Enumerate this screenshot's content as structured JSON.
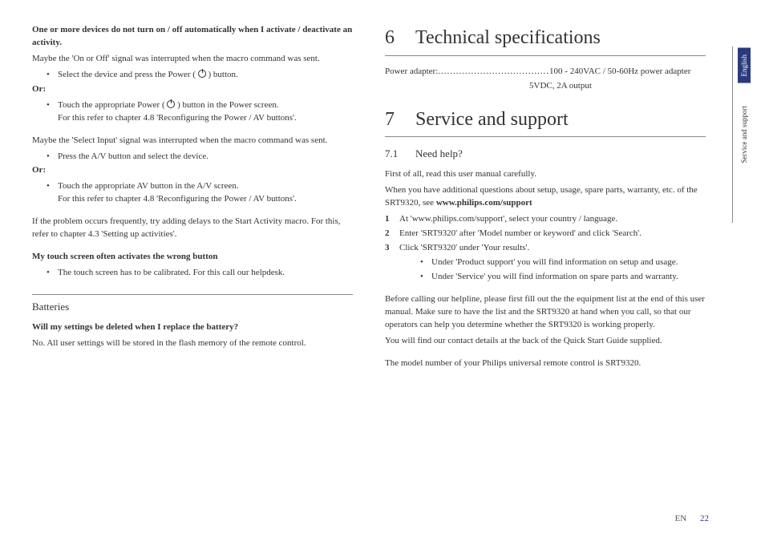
{
  "left": {
    "p1_bold": "One or more devices do not turn on / off automatically when I activate / deactivate an activity.",
    "p2": "Maybe the 'On or Off' signal was interrupted when the macro command was sent.",
    "b1a": "Select the device and press the Power (",
    "b1b": ") button.",
    "or": "Or:",
    "b2a": "Touch the appropriate Power (",
    "b2b": ") button in the Power screen.",
    "b2c": "For this refer to chapter 4.8 'Reconfiguring the Power / AV buttons'.",
    "p3": "Maybe the 'Select Input' signal was interrupted when the macro command was sent.",
    "b3": "Press the A/V button and select the device.",
    "b4": "Touch the appropriate AV button in the A/V screen.",
    "b4b": "For this refer to chapter 4.8 'Reconfiguring the Power / AV buttons'.",
    "p4": "If the problem occurs frequently, try adding delays to the Start Activity macro. For this, refer to chapter 4.3 'Setting up activities'.",
    "h_touch": "My touch screen often activates the wrong button",
    "b5": "The touch screen has to be calibrated. For this call our helpdesk.",
    "h_batt": "Batteries",
    "q_batt": "Will my settings be deleted when I replace the battery?",
    "a_batt": "No. All user settings will be stored in the flash memory of the remote control."
  },
  "right": {
    "h6_num": "6",
    "h6": "Technical specifications",
    "spec_label": "Power adapter:",
    "spec_dots": ".....................................",
    "spec_val": "100 - 240VAC / 50-60Hz power adapter",
    "spec_sub": "5VDC, 2A output",
    "h7_num": "7",
    "h7": "Service and support",
    "h71_num": "7.1",
    "h71": "Need help?",
    "p1": "First of all, read this user manual carefully.",
    "p2a": "When you have additional questions about setup, usage, spare parts, warranty, etc. of the SRT9320, see ",
    "p2b": "www.philips.com/support",
    "s1": "At 'www.philips.com/support', select your country / language.",
    "s2": "Enter 'SRT9320' after 'Model number or keyword' and click 'Search'.",
    "s3": "Click 'SRT9320' under 'Your results'.",
    "sb1": "Under 'Product support' you will find information on setup and usage.",
    "sb2": "Under 'Service' you will find information on spare parts and warranty.",
    "p3": "Before calling our helpline, please first fill out the the equipment list at the end of this user manual. Make sure to have the list and the SRT9320 at hand when you call, so that our operators can help you determine whether the SRT9320 is working properly.",
    "p4": "You will find our contact details at the back of the Quick Start Guide supplied.",
    "p5": "The model number of your Philips universal remote control is SRT9320."
  },
  "side": {
    "lang": "English",
    "section": "Service and support"
  },
  "footer": {
    "lang": "EN",
    "page": "22"
  }
}
